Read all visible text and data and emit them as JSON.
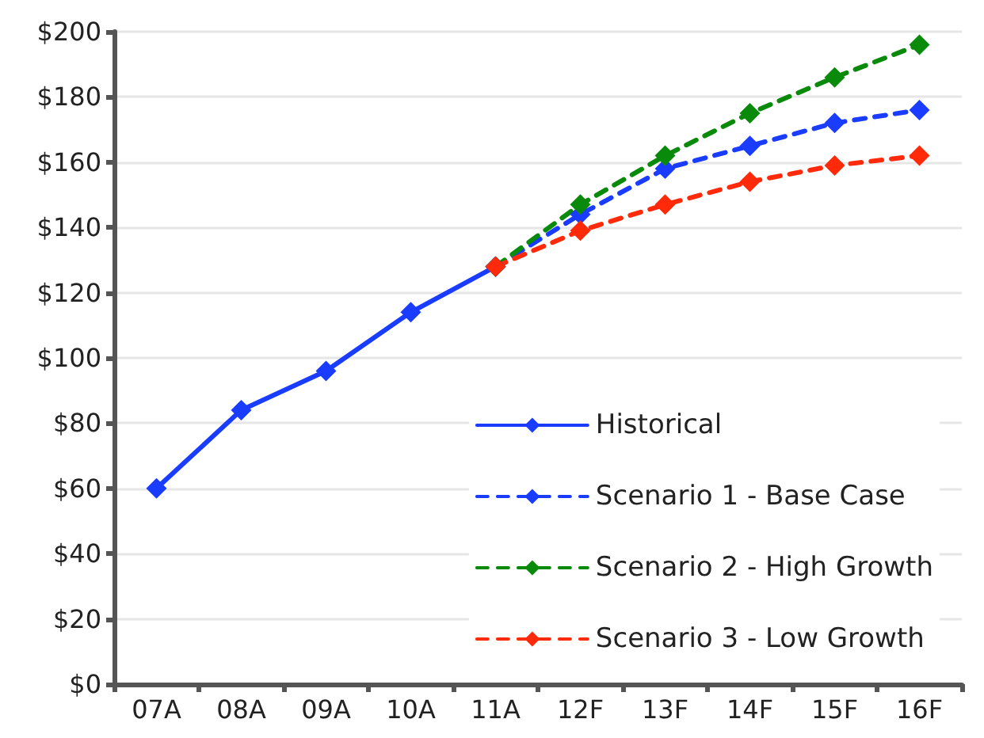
{
  "chart_data": {
    "type": "line",
    "categories": [
      "07A",
      "08A",
      "09A",
      "10A",
      "11A",
      "12F",
      "13F",
      "14F",
      "15F",
      "16F"
    ],
    "series": [
      {
        "name": "Historical",
        "color": "#1a3cff",
        "line_style": "solid",
        "values": [
          60,
          84,
          96,
          114,
          128,
          null,
          null,
          null,
          null,
          null
        ]
      },
      {
        "name": "Scenario 1 - Base Case",
        "color": "#1a3cff",
        "line_style": "dashed",
        "values": [
          null,
          null,
          null,
          null,
          128,
          144,
          158,
          165,
          172,
          176
        ]
      },
      {
        "name": "Scenario 2 - High Growth",
        "color": "#0a8a0a",
        "line_style": "dashed",
        "values": [
          null,
          null,
          null,
          null,
          128,
          147,
          162,
          175,
          186,
          196
        ]
      },
      {
        "name": "Scenario 3 - Low Growth",
        "color": "#ff2a0a",
        "line_style": "dashed",
        "values": [
          null,
          null,
          null,
          null,
          128,
          139,
          147,
          154,
          159,
          162
        ]
      }
    ],
    "ylim": [
      0,
      200
    ],
    "yticks": [
      {
        "value": 0,
        "label": "$0"
      },
      {
        "value": 20,
        "label": "$20"
      },
      {
        "value": 40,
        "label": "$40"
      },
      {
        "value": 60,
        "label": "$60"
      },
      {
        "value": 80,
        "label": "$80"
      },
      {
        "value": 100,
        "label": "$100"
      },
      {
        "value": 120,
        "label": "$120"
      },
      {
        "value": 140,
        "label": "$140"
      },
      {
        "value": 160,
        "label": "$160"
      },
      {
        "value": 180,
        "label": "$180"
      },
      {
        "value": 200,
        "label": "$200"
      }
    ],
    "grid": "y",
    "legend": "bottom right",
    "marker": "diamond"
  }
}
